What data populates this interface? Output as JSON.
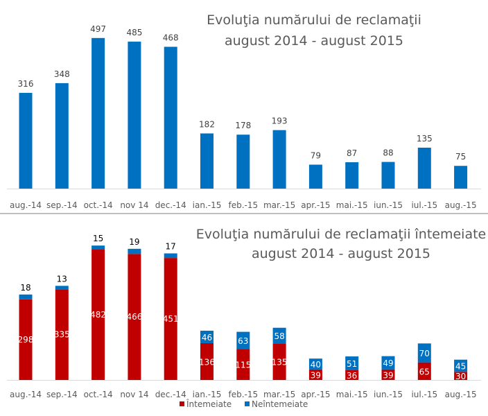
{
  "chart_data": [
    {
      "type": "bar",
      "title": "Evoluţia numărului de reclamaţii",
      "subtitle": "august 2014 - august 2015",
      "categories": [
        "aug.-14",
        "sep.-14",
        "oct.-14",
        "nov 14",
        "dec.-14",
        "ian.-15",
        "feb.-15",
        "mar.-15",
        "apr.-15",
        "mai.-15",
        "iun.-15",
        "iul.-15",
        "aug.-15"
      ],
      "values": [
        316,
        348,
        497,
        485,
        468,
        182,
        178,
        193,
        79,
        87,
        88,
        135,
        75
      ],
      "color": "#0070C0",
      "ylim": [
        0,
        500
      ],
      "grid": false
    },
    {
      "type": "bar",
      "stacked": true,
      "title": "Evoluţia numărului de reclamaţii întemeiate",
      "subtitle": "august 2014 - august 2015",
      "categories": [
        "aug.-14",
        "sep.-14",
        "oct.-14",
        "nov 14",
        "dec.-14",
        "ian.-15",
        "feb.-15",
        "mar.-15",
        "apr.-15",
        "mai.-15",
        "iun.-15",
        "iul.-15",
        "aug.-15"
      ],
      "series": [
        {
          "name": "Întemeiate",
          "color": "#C00000",
          "values": [
            298,
            335,
            482,
            466,
            451,
            136,
            115,
            135,
            39,
            36,
            39,
            65,
            30
          ]
        },
        {
          "name": "Neîntemeiate",
          "color": "#0070C0",
          "values": [
            18,
            13,
            15,
            19,
            17,
            46,
            63,
            58,
            40,
            51,
            49,
            70,
            45
          ]
        }
      ],
      "legend": "bottom",
      "ylim": [
        0,
        500
      ],
      "grid": false
    }
  ]
}
